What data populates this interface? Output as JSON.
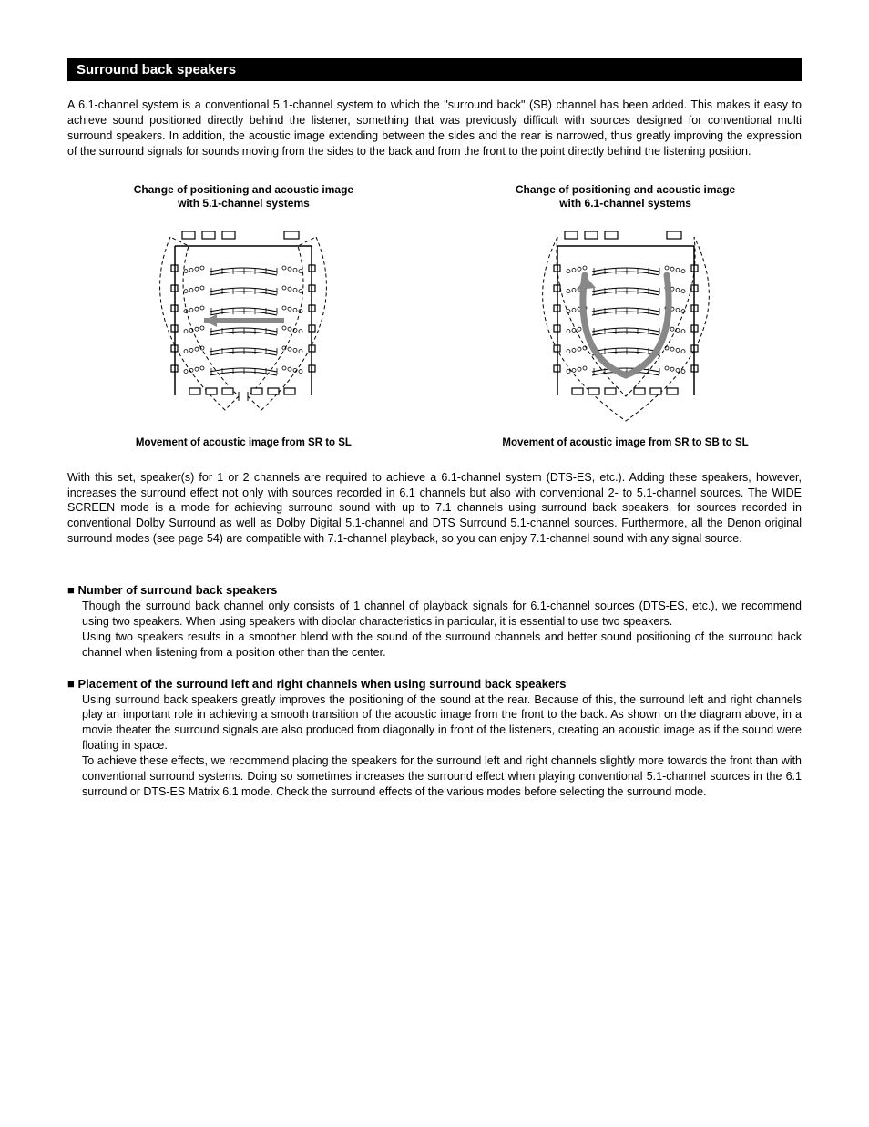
{
  "header": {
    "title": "Surround back speakers"
  },
  "intro": {
    "text": "A 6.1-channel system is a conventional 5.1-channel system to which the \"surround back\" (SB) channel has been added.  This makes it easy to achieve sound positioned directly behind the listener, something that was previously difficult with sources designed for conventional multi surround speakers.  In addition, the acoustic image extending between the sides and the rear is narrowed, thus greatly improving the expression of the surround signals for sounds moving from the sides to the back and from the front to the point directly behind the listening position."
  },
  "diagrams": {
    "left": {
      "title_line1": "Change of positioning and acoustic image",
      "title_line2": "with 5.1-channel systems",
      "caption": "Movement of acoustic image from SR to SL",
      "layout": {
        "rows": 6,
        "seats_per_side": 4,
        "front_speakers": 4,
        "side_speakers_per_side": 6,
        "back_speakers": 6,
        "arc_split": true,
        "arrow_type": "horizontal",
        "colors": {
          "stroke": "#000000",
          "seat_fill": "#ffffff",
          "arrow": "#888888",
          "dash": "#000000"
        }
      }
    },
    "right": {
      "title_line1": "Change of positioning and acoustic image",
      "title_line2": "with 6.1-channel systems",
      "caption": "Movement of acoustic image from SR to SB to SL",
      "layout": {
        "rows": 6,
        "seats_per_side": 4,
        "front_speakers": 4,
        "side_speakers_per_side": 6,
        "back_speakers": 6,
        "arc_split": false,
        "arrow_type": "u-curve",
        "colors": {
          "stroke": "#000000",
          "seat_fill": "#ffffff",
          "arrow": "#888888",
          "dash": "#000000"
        }
      }
    }
  },
  "mid_paragraph": {
    "text": "With this set, speaker(s) for 1 or 2 channels are required to achieve a 6.1-channel system (DTS-ES, etc.).  Adding these speakers, however, increases the surround effect not only with sources recorded in 6.1 channels but also with conventional 2- to 5.1-channel sources.  The WIDE SCREEN mode is a mode for achieving surround sound with up to 7.1 channels using surround back speakers, for sources recorded in conventional Dolby Surround as well as Dolby Digital 5.1-channel and DTS Surround 5.1-channel sources.  Furthermore, all the Denon original surround modes (see page 54) are compatible with 7.1-channel playback, so you can enjoy 7.1-channel sound with any signal source."
  },
  "bullets": [
    {
      "heading": "Number of surround back speakers",
      "body": "Though the surround back channel only consists of 1 channel of playback signals for 6.1-channel sources (DTS-ES, etc.), we recommend using two speakers.  When using speakers with dipolar characteristics in particular, it is essential to use two speakers.\nUsing two speakers results in a smoother blend with the sound of the surround channels and better sound positioning of the surround back channel when listening from a position other than the center."
    },
    {
      "heading": "Placement of the surround left and right channels when using surround back speakers",
      "body": "Using surround back speakers greatly improves the positioning of the sound at the rear.  Because of this, the surround left and right channels play an important role in achieving a smooth transition of the acoustic image from the front to the back.  As shown on the diagram above, in a movie theater the surround signals are also produced from diagonally in front of the listeners, creating an acoustic image as if the sound were floating in space.\nTo achieve these effects, we recommend placing the speakers for the surround left and right channels slightly more towards the front than with conventional surround systems.  Doing so sometimes increases the surround effect when playing conventional 5.1-channel sources in the 6.1 surround or DTS-ES Matrix 6.1 mode.  Check the surround effects of the various modes before selecting the surround mode."
    }
  ]
}
